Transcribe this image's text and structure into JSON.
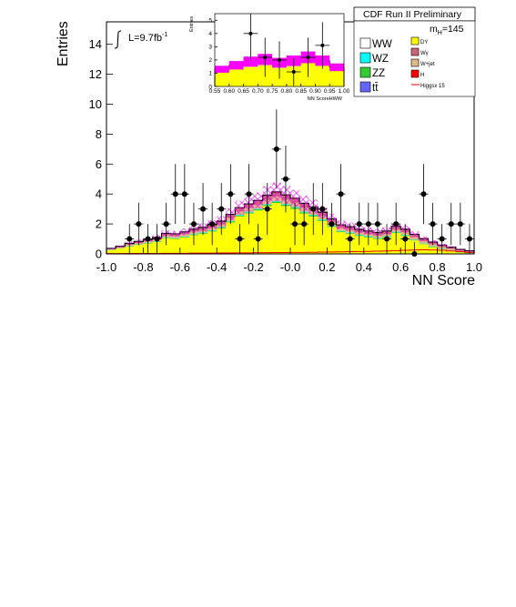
{
  "chart_data": [
    {
      "type": "bar",
      "title": "CDF Run II Preliminary",
      "xlabel": "NN Score",
      "ylabel": "Entries",
      "xlim": [
        -1.0,
        1.0
      ],
      "ylim": [
        0,
        15.5
      ],
      "xticks": [
        "-1.0",
        "-0.8",
        "-0.6",
        "-0.4",
        "-0.2",
        "-0.0",
        "0.2",
        "0.4",
        "0.6",
        "0.8",
        "1.0"
      ],
      "yticks": [
        "0",
        "2",
        "4",
        "6",
        "8",
        "10",
        "12",
        "14"
      ],
      "lumi_label": "L=9.7fb",
      "lumi_exp": "-1",
      "mass_label": "m",
      "mass_sub": "H",
      "mass_value": "=145",
      "bin_edges": [
        -1.0,
        0.05
      ],
      "stack_order": [
        "DY",
        "ZZ",
        "WZ",
        "W+jet",
        "Wγ"
      ],
      "series": [
        {
          "name": "DY",
          "color": "#ffff00",
          "values": [
            0.25,
            0.35,
            0.5,
            0.6,
            0.7,
            0.8,
            1.05,
            1.0,
            1.1,
            1.25,
            1.35,
            1.5,
            1.7,
            2.1,
            2.5,
            2.7,
            2.9,
            3.2,
            3.4,
            3.2,
            3.0,
            2.7,
            2.5,
            2.2,
            1.8,
            1.45,
            1.35,
            1.2,
            1.1,
            1.0,
            1.1,
            1.4,
            1.2,
            0.9,
            0.65,
            0.45,
            0.3,
            0.2,
            0.1,
            0.05
          ]
        },
        {
          "name": "ZZ",
          "color": "#33cc33",
          "values": [
            0.02,
            0.02,
            0.03,
            0.03,
            0.03,
            0.04,
            0.04,
            0.04,
            0.05,
            0.05,
            0.05,
            0.06,
            0.06,
            0.07,
            0.07,
            0.08,
            0.08,
            0.09,
            0.09,
            0.09,
            0.09,
            0.08,
            0.08,
            0.07,
            0.07,
            0.06,
            0.06,
            0.05,
            0.05,
            0.05,
            0.05,
            0.05,
            0.05,
            0.04,
            0.04,
            0.04,
            0.03,
            0.03,
            0.03,
            0.02
          ]
        },
        {
          "name": "WZ",
          "color": "#00ffff",
          "values": [
            0.01,
            0.01,
            0.01,
            0.01,
            0.02,
            0.02,
            0.02,
            0.02,
            0.02,
            0.03,
            0.03,
            0.03,
            0.03,
            0.03,
            0.04,
            0.04,
            0.04,
            0.04,
            0.04,
            0.04,
            0.04,
            0.04,
            0.04,
            0.04,
            0.03,
            0.03,
            0.03,
            0.03,
            0.03,
            0.03,
            0.03,
            0.03,
            0.03,
            0.02,
            0.02,
            0.02,
            0.02,
            0.02,
            0.01,
            0.01
          ]
        },
        {
          "name": "W+jet",
          "color": "#deb887",
          "values": [
            0.04,
            0.06,
            0.08,
            0.09,
            0.1,
            0.11,
            0.12,
            0.13,
            0.14,
            0.15,
            0.16,
            0.17,
            0.18,
            0.2,
            0.22,
            0.24,
            0.25,
            0.27,
            0.28,
            0.28,
            0.27,
            0.26,
            0.24,
            0.22,
            0.2,
            0.18,
            0.17,
            0.16,
            0.15,
            0.15,
            0.15,
            0.16,
            0.16,
            0.15,
            0.13,
            0.12,
            0.1,
            0.08,
            0.06,
            0.05
          ]
        },
        {
          "name": "Wγ",
          "color": "#cc6677",
          "values": [
            0.05,
            0.06,
            0.08,
            0.1,
            0.12,
            0.13,
            0.14,
            0.15,
            0.16,
            0.17,
            0.18,
            0.2,
            0.22,
            0.24,
            0.26,
            0.28,
            0.3,
            0.32,
            0.33,
            0.33,
            0.32,
            0.3,
            0.28,
            0.26,
            0.24,
            0.22,
            0.21,
            0.2,
            0.2,
            0.2,
            0.2,
            0.21,
            0.21,
            0.2,
            0.18,
            0.16,
            0.14,
            0.12,
            0.1,
            0.08
          ]
        },
        {
          "name": "WW",
          "color": "#ffffff",
          "values": [
            0.03,
            0.04,
            0.05,
            0.06,
            0.07,
            0.08,
            0.09,
            0.1,
            0.11,
            0.12,
            0.13,
            0.14,
            0.16,
            0.18,
            0.2,
            0.22,
            0.24,
            0.26,
            0.28,
            0.28,
            0.27,
            0.26,
            0.24,
            0.22,
            0.2,
            0.18,
            0.17,
            0.16,
            0.16,
            0.16,
            0.17,
            0.2,
            0.22,
            0.24,
            0.22,
            0.2,
            0.18,
            0.16,
            0.12,
            0.08
          ]
        },
        {
          "name": "H",
          "color": "#ff0000",
          "values": [
            0,
            0,
            0,
            0,
            0,
            0,
            0,
            0,
            0,
            0,
            0,
            0,
            0,
            0,
            0,
            0,
            0,
            0,
            0,
            0,
            0,
            0,
            0,
            0,
            0,
            0,
            0,
            0,
            0,
            0,
            0,
            0,
            0,
            0,
            0.01,
            0.01,
            0.02,
            0.02,
            0.02,
            0.01
          ]
        }
      ],
      "uncertainty_band": {
        "color": "#ff00ff",
        "relative": 0.15
      },
      "signal_line": {
        "name": "Higgsx 15",
        "color": "#ff0000",
        "values": [
          0.02,
          0.02,
          0.03,
          0.03,
          0.03,
          0.03,
          0.04,
          0.04,
          0.04,
          0.05,
          0.05,
          0.05,
          0.06,
          0.06,
          0.07,
          0.07,
          0.08,
          0.08,
          0.09,
          0.09,
          0.1,
          0.1,
          0.11,
          0.12,
          0.13,
          0.14,
          0.15,
          0.16,
          0.17,
          0.18,
          0.2,
          0.22,
          0.24,
          0.26,
          0.27,
          0.26,
          0.24,
          0.2,
          0.15,
          0.1
        ]
      },
      "observed": {
        "name": "Data",
        "x": [
          -0.875,
          -0.825,
          -0.775,
          -0.725,
          -0.675,
          -0.625,
          -0.575,
          -0.525,
          -0.475,
          -0.425,
          -0.375,
          -0.325,
          -0.275,
          -0.225,
          -0.175,
          -0.125,
          -0.075,
          -0.025,
          0.025,
          0.075,
          0.125,
          0.175,
          0.225,
          0.275,
          0.325,
          0.375,
          0.425,
          0.475,
          0.525,
          0.575,
          0.625,
          0.675,
          0.725,
          0.775,
          0.825,
          0.875,
          0.925,
          0.975
        ],
        "y": [
          1,
          2,
          1,
          1,
          2,
          4,
          4,
          2,
          3,
          2,
          3,
          4,
          1,
          4,
          1,
          3,
          7,
          5,
          2,
          2,
          3,
          3,
          2,
          4,
          1,
          2,
          2,
          2,
          1,
          2,
          1,
          0,
          4,
          2,
          1,
          2,
          2,
          1
        ]
      },
      "legend": {
        "placement": "top-right",
        "entries": [
          {
            "label": "WW",
            "color": "#ffffff"
          },
          {
            "label": "DY",
            "color": "#ffff00"
          },
          {
            "label": "Wγ",
            "color": "#cc6677"
          },
          {
            "label": "WZ",
            "color": "#00ffff"
          },
          {
            "label": "W+jet",
            "color": "#deb887"
          },
          {
            "label": "ZZ",
            "color": "#33cc33"
          },
          {
            "label": "H",
            "color": "#ff0000"
          },
          {
            "label": "tt̄",
            "color": "#6666ff"
          },
          {
            "label": "Higgsx 15",
            "color": "#ff0000"
          }
        ]
      },
      "grid": false
    },
    {
      "type": "bar",
      "title": "",
      "xlabel": "NN ScoreHWW",
      "ylabel": "Entries",
      "xlim": [
        0.55,
        1.0
      ],
      "ylim": [
        0,
        5.5
      ],
      "xticks": [
        "0.55",
        "0.60",
        "0.65",
        "0.70",
        "0.75",
        "0.80",
        "0.85",
        "0.90",
        "0.95",
        "1.00"
      ],
      "yticks": [
        "0",
        "1",
        "2",
        "3",
        "4",
        "5"
      ],
      "bin_edges": [
        0.55,
        0.05
      ],
      "series": [
        {
          "name": "DY",
          "color": "#ffff00",
          "values": [
            1.1,
            1.3,
            1.45,
            1.55,
            1.35,
            1.5,
            1.8,
            1.55,
            1.2
          ]
        },
        {
          "name": "W+jet",
          "color": "#deb887",
          "values": [
            0.15,
            0.25,
            0.35,
            0.4,
            0.35,
            0.35,
            0.3,
            0.3,
            0.2
          ]
        },
        {
          "name": "Wγ",
          "color": "#cc6677",
          "values": [
            0.05,
            0.05,
            0.08,
            0.1,
            0.1,
            0.1,
            0.1,
            0.1,
            0.05
          ]
        }
      ],
      "uncertainty_band": {
        "color": "#ff00ff",
        "relative": 0.2
      },
      "observed": {
        "name": "Data",
        "x": [
          0.675,
          0.725,
          0.775,
          0.825,
          0.875,
          0.925
        ],
        "y": [
          4,
          2.2,
          2,
          1.1,
          2.2,
          3.1
        ]
      },
      "grid": false
    }
  ]
}
